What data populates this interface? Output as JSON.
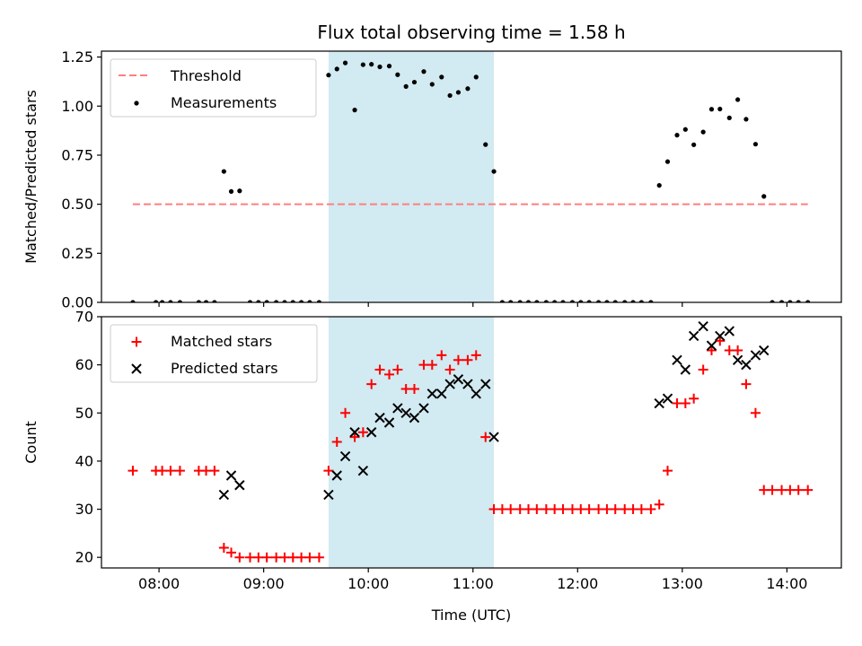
{
  "chart_data": {
    "type": "scatter",
    "title": "Flux total observing time = 1.58 h",
    "xlabel": "Time (UTC)",
    "x_unit": "hours UTC (decimal)",
    "xlim": [
      7.45,
      14.52
    ],
    "x_ticks": [
      8,
      9,
      10,
      11,
      12,
      13,
      14
    ],
    "x_tick_labels": [
      "08:00",
      "09:00",
      "10:00",
      "11:00",
      "12:00",
      "13:00",
      "14:00"
    ],
    "highlight_span": [
      9.62,
      11.2
    ],
    "highlight_color": "#add8e6",
    "panels": [
      {
        "ylabel": "Matched/Predicted stars",
        "ylim": [
          0,
          1.28
        ],
        "y_ticks": [
          0,
          0.25,
          0.5,
          0.75,
          1.0,
          1.25
        ],
        "y_tick_labels": [
          "0.00",
          "0.25",
          "0.50",
          "0.75",
          "1.00",
          "1.25"
        ],
        "legend": [
          "Threshold",
          "Measurements"
        ],
        "threshold": {
          "name": "Threshold",
          "value": 0.5,
          "x_range": [
            7.75,
            14.2
          ],
          "color": "#ff7f7f"
        },
        "series": [
          {
            "name": "Measurements",
            "marker": "dot",
            "color": "#000000",
            "points": [
              [
                7.75,
                0
              ],
              [
                7.97,
                0
              ],
              [
                8.03,
                0
              ],
              [
                8.11,
                0
              ],
              [
                8.2,
                0
              ],
              [
                8.38,
                0
              ],
              [
                8.45,
                0
              ],
              [
                8.53,
                0
              ],
              [
                8.62,
                0.667
              ],
              [
                8.69,
                0.565
              ],
              [
                8.77,
                0.568
              ],
              [
                8.87,
                0
              ],
              [
                8.95,
                0
              ],
              [
                9.03,
                0
              ],
              [
                9.12,
                0
              ],
              [
                9.2,
                0
              ],
              [
                9.28,
                0
              ],
              [
                9.36,
                0
              ],
              [
                9.44,
                0
              ],
              [
                9.53,
                0
              ],
              [
                9.62,
                1.158
              ],
              [
                9.7,
                1.189
              ],
              [
                9.78,
                1.22
              ],
              [
                9.87,
                0.98
              ],
              [
                9.95,
                1.211
              ],
              [
                10.03,
                1.213
              ],
              [
                10.11,
                1.2
              ],
              [
                10.2,
                1.204
              ],
              [
                10.28,
                1.16
              ],
              [
                10.36,
                1.1
              ],
              [
                10.44,
                1.122
              ],
              [
                10.53,
                1.176
              ],
              [
                10.61,
                1.111
              ],
              [
                10.7,
                1.148
              ],
              [
                10.78,
                1.054
              ],
              [
                10.86,
                1.07
              ],
              [
                10.95,
                1.089
              ],
              [
                11.03,
                1.148
              ],
              [
                11.12,
                0.804
              ],
              [
                11.2,
                0.667
              ],
              [
                11.28,
                0
              ],
              [
                11.36,
                0
              ],
              [
                11.45,
                0
              ],
              [
                11.53,
                0
              ],
              [
                11.61,
                0
              ],
              [
                11.7,
                0
              ],
              [
                11.78,
                0
              ],
              [
                11.86,
                0
              ],
              [
                11.95,
                0
              ],
              [
                12.03,
                0
              ],
              [
                12.11,
                0
              ],
              [
                12.2,
                0
              ],
              [
                12.28,
                0
              ],
              [
                12.36,
                0
              ],
              [
                12.45,
                0
              ],
              [
                12.53,
                0
              ],
              [
                12.61,
                0
              ],
              [
                12.7,
                0
              ],
              [
                12.78,
                0.596
              ],
              [
                12.86,
                0.717
              ],
              [
                12.95,
                0.852
              ],
              [
                13.03,
                0.881
              ],
              [
                13.11,
                0.803
              ],
              [
                13.2,
                0.868
              ],
              [
                13.28,
                0.984
              ],
              [
                13.36,
                0.985
              ],
              [
                13.45,
                0.94
              ],
              [
                13.53,
                1.033
              ],
              [
                13.61,
                0.933
              ],
              [
                13.7,
                0.806
              ],
              [
                13.78,
                0.54
              ],
              [
                13.86,
                0
              ],
              [
                13.95,
                0
              ],
              [
                14.03,
                0
              ],
              [
                14.11,
                0
              ],
              [
                14.2,
                0
              ]
            ]
          }
        ]
      },
      {
        "ylabel": "Count",
        "ylim": [
          17.8,
          70
        ],
        "y_ticks": [
          20,
          30,
          40,
          50,
          60,
          70
        ],
        "y_tick_labels": [
          "20",
          "30",
          "40",
          "50",
          "60",
          "70"
        ],
        "legend": [
          "Matched stars",
          "Predicted stars"
        ],
        "series": [
          {
            "name": "Matched stars",
            "marker": "plus",
            "color": "#ff0000",
            "points": [
              [
                7.75,
                38
              ],
              [
                7.97,
                38
              ],
              [
                8.03,
                38
              ],
              [
                8.11,
                38
              ],
              [
                8.2,
                38
              ],
              [
                8.38,
                38
              ],
              [
                8.45,
                38
              ],
              [
                8.53,
                38
              ],
              [
                8.62,
                22
              ],
              [
                8.69,
                21
              ],
              [
                8.77,
                20
              ],
              [
                8.87,
                20
              ],
              [
                8.95,
                20
              ],
              [
                9.03,
                20
              ],
              [
                9.12,
                20
              ],
              [
                9.2,
                20
              ],
              [
                9.28,
                20
              ],
              [
                9.36,
                20
              ],
              [
                9.44,
                20
              ],
              [
                9.53,
                20
              ],
              [
                9.62,
                38
              ],
              [
                9.7,
                44
              ],
              [
                9.78,
                50
              ],
              [
                9.87,
                45
              ],
              [
                9.95,
                46
              ],
              [
                10.03,
                56
              ],
              [
                10.11,
                59
              ],
              [
                10.2,
                58
              ],
              [
                10.28,
                59
              ],
              [
                10.36,
                55
              ],
              [
                10.44,
                55
              ],
              [
                10.53,
                60
              ],
              [
                10.61,
                60
              ],
              [
                10.7,
                62
              ],
              [
                10.78,
                59
              ],
              [
                10.86,
                61
              ],
              [
                10.95,
                61
              ],
              [
                11.03,
                62
              ],
              [
                11.12,
                45
              ],
              [
                11.2,
                30
              ],
              [
                11.28,
                30
              ],
              [
                11.36,
                30
              ],
              [
                11.45,
                30
              ],
              [
                11.53,
                30
              ],
              [
                11.61,
                30
              ],
              [
                11.7,
                30
              ],
              [
                11.78,
                30
              ],
              [
                11.86,
                30
              ],
              [
                11.95,
                30
              ],
              [
                12.03,
                30
              ],
              [
                12.11,
                30
              ],
              [
                12.2,
                30
              ],
              [
                12.28,
                30
              ],
              [
                12.36,
                30
              ],
              [
                12.45,
                30
              ],
              [
                12.53,
                30
              ],
              [
                12.61,
                30
              ],
              [
                12.7,
                30
              ],
              [
                12.78,
                31
              ],
              [
                12.86,
                38
              ],
              [
                12.95,
                52
              ],
              [
                13.03,
                52
              ],
              [
                13.11,
                53
              ],
              [
                13.2,
                59
              ],
              [
                13.28,
                63
              ],
              [
                13.36,
                65
              ],
              [
                13.45,
                63
              ],
              [
                13.53,
                63
              ],
              [
                13.61,
                56
              ],
              [
                13.7,
                50
              ],
              [
                13.78,
                34
              ],
              [
                13.86,
                34
              ],
              [
                13.95,
                34
              ],
              [
                14.03,
                34
              ],
              [
                14.11,
                34
              ],
              [
                14.2,
                34
              ]
            ]
          },
          {
            "name": "Predicted stars",
            "marker": "x",
            "color": "#000000",
            "points": [
              [
                8.62,
                33
              ],
              [
                8.69,
                37
              ],
              [
                8.77,
                35
              ],
              [
                9.62,
                33
              ],
              [
                9.7,
                37
              ],
              [
                9.78,
                41
              ],
              [
                9.87,
                46
              ],
              [
                9.95,
                38
              ],
              [
                10.03,
                46
              ],
              [
                10.11,
                49
              ],
              [
                10.2,
                48
              ],
              [
                10.28,
                51
              ],
              [
                10.36,
                50
              ],
              [
                10.44,
                49
              ],
              [
                10.53,
                51
              ],
              [
                10.61,
                54
              ],
              [
                10.7,
                54
              ],
              [
                10.78,
                56
              ],
              [
                10.86,
                57
              ],
              [
                10.95,
                56
              ],
              [
                11.03,
                54
              ],
              [
                11.12,
                56
              ],
              [
                11.2,
                45
              ],
              [
                12.78,
                52
              ],
              [
                12.86,
                53
              ],
              [
                12.95,
                61
              ],
              [
                13.03,
                59
              ],
              [
                13.11,
                66
              ],
              [
                13.2,
                68
              ],
              [
                13.28,
                64
              ],
              [
                13.36,
                66
              ],
              [
                13.45,
                67
              ],
              [
                13.53,
                61
              ],
              [
                13.61,
                60
              ],
              [
                13.7,
                62
              ],
              [
                13.78,
                63
              ]
            ]
          }
        ]
      }
    ]
  }
}
